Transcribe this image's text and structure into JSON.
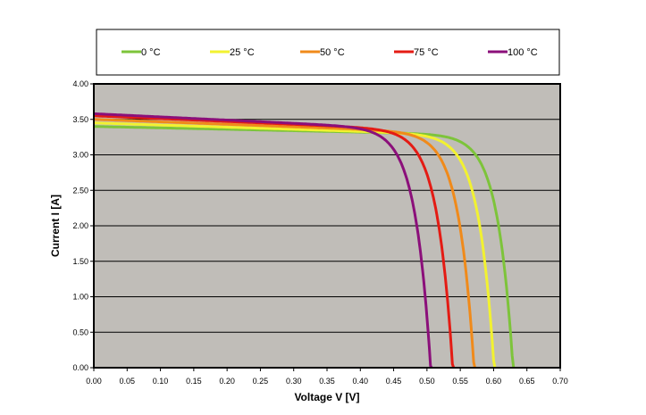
{
  "chart_data": {
    "type": "line",
    "title": "",
    "xlabel": "Voltage V  [V]",
    "ylabel": "Current I  [A]",
    "xlim": [
      0,
      0.7
    ],
    "ylim": [
      0,
      4.0
    ],
    "xticks": [
      "0.00",
      "0.05",
      "0.10",
      "0.15",
      "0.20",
      "0.25",
      "0.30",
      "0.35",
      "0.40",
      "0.45",
      "0.50",
      "0.55",
      "0.60",
      "0.65",
      "0.70"
    ],
    "yticks": [
      "0.00",
      "0.50",
      "1.00",
      "1.50",
      "2.00",
      "2.50",
      "3.00",
      "3.50",
      "4.00"
    ],
    "grid": "horizontal",
    "legend_position": "top",
    "plot_background": "#c0bdb8",
    "series": [
      {
        "name": "0 °C",
        "color": "#7dc43a",
        "isc": 3.4,
        "voc": 0.63,
        "slope": 0.2
      },
      {
        "name": "25 °C",
        "color": "#f2f230",
        "isc": 3.45,
        "voc": 0.602,
        "slope": 0.3
      },
      {
        "name": "50 °C",
        "color": "#f08a1a",
        "isc": 3.5,
        "voc": 0.572,
        "slope": 0.35
      },
      {
        "name": "75 °C",
        "color": "#e41b14",
        "isc": 3.55,
        "voc": 0.54,
        "slope": 0.4
      },
      {
        "name": "100 °C",
        "color": "#8b0f7a",
        "isc": 3.58,
        "voc": 0.507,
        "slope": 0.45
      }
    ]
  }
}
